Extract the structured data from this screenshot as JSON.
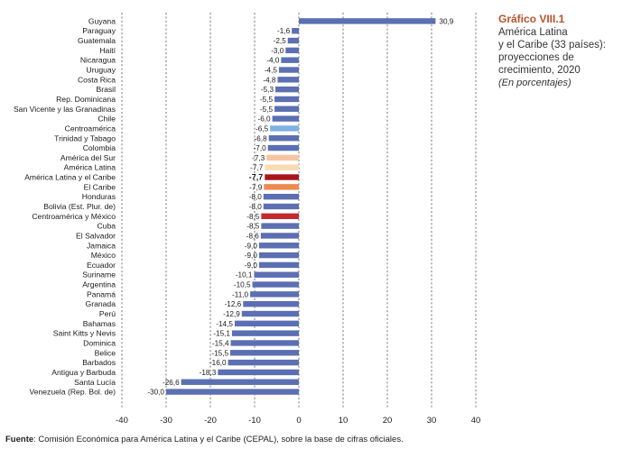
{
  "figure_label": "Gráfico VIII.1",
  "title_lines": [
    "América Latina",
    "y el Caribe (33 países):",
    "proyecciones de",
    "crecimiento, 2020"
  ],
  "units": "(En porcentajes)",
  "source": {
    "key": "Fuente",
    "text": ": Comisión Económica para América Latina y el Caribe (CEPAL), sobre la base de cifras oficiales."
  },
  "colors": {
    "default": "#5b6fb2",
    "centroamerica": "#7fb1e3",
    "america_del_sur": "#f6c5a3",
    "america_latina": "#f7dcb2",
    "america_latina_caribe": "#a8161b",
    "el_caribe": "#ee8a4e",
    "centroamerica_mexico": "#c32a2f"
  },
  "chart_data": {
    "type": "bar",
    "orientation": "horizontal",
    "categories": [
      "Guyana",
      "Paraguay",
      "Guatemala",
      "Haití",
      "Nicaragua",
      "Uruguay",
      "Costa Rica",
      "Brasil",
      "Rep. Dominicana",
      "San Vicente y las Granadinas",
      "Chile",
      "Centroamérica",
      "Trinidad y Tabago",
      "Colombia",
      "América del Sur",
      "América Latina",
      "América Latina y el Caribe",
      "El Caribe",
      "Honduras",
      "Bolivia (Est. Plur. de)",
      "Centroamérica y México",
      "Cuba",
      "El Salvador",
      "Jamaica",
      "México",
      "Ecuador",
      "Suriname",
      "Argentina",
      "Panamá",
      "Granada",
      "Perú",
      "Bahamas",
      "Saint Kitts y Nevis",
      "Dominica",
      "Belice",
      "Barbados",
      "Antigua y Barbuda",
      "Santa Lucía",
      "Venezuela (Rep. Bol. de)"
    ],
    "values": [
      30.9,
      -1.6,
      -2.5,
      -3.0,
      -4.0,
      -4.5,
      -4.8,
      -5.3,
      -5.5,
      -5.5,
      -6.0,
      -6.5,
      -6.8,
      -7.0,
      -7.3,
      -7.7,
      -7.7,
      -7.9,
      -8.0,
      -8.0,
      -8.5,
      -8.5,
      -8.6,
      -9.0,
      -9.0,
      -9.0,
      -10.1,
      -10.5,
      -11.0,
      -12.6,
      -12.9,
      -14.5,
      -15.1,
      -15.4,
      -15.5,
      -16.0,
      -18.3,
      -26.6,
      -30.0
    ],
    "value_labels": [
      "30,9",
      "-1,6",
      "-2,5",
      "-3,0",
      "-4,0",
      "-4,5",
      "-4,8",
      "-5,3",
      "-5,5",
      "-5,5",
      "-6,0",
      "-6,5",
      "-6,8",
      "-7,0",
      "-7,3",
      "-7,7",
      "-7,7",
      "-7,9",
      "-8,0",
      "-8,0",
      "-8,5",
      "-8,5",
      "-8,6",
      "-9,0",
      "-9,0",
      "-9,0",
      "-10,1",
      "-10,5",
      "-11,0",
      "-12,6",
      "-12,9",
      "-14,5",
      "-15,1",
      "-15,4",
      "-15,5",
      "-16,0",
      "-18,3",
      "-26,6",
      "-30,0"
    ],
    "highlight": {
      "Centroamérica": "centroamerica",
      "América del Sur": "america_del_sur",
      "América Latina": "america_latina",
      "América Latina y el Caribe": "america_latina_caribe",
      "El Caribe": "el_caribe",
      "Centroamérica y México": "centroamerica_mexico"
    },
    "bold_label": "América Latina y el Caribe",
    "xlim": [
      -40,
      40
    ],
    "xticks": [
      -40,
      -30,
      -20,
      -10,
      0,
      10,
      20,
      30,
      40
    ],
    "grid": "vertical dashed"
  }
}
